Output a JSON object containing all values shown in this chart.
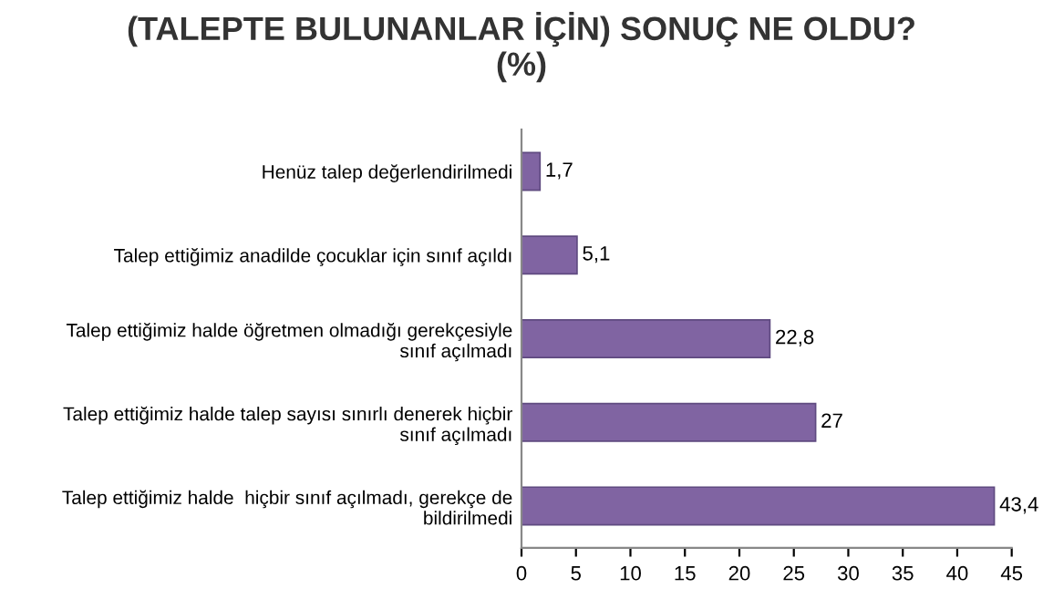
{
  "chart_data": {
    "type": "bar",
    "orientation": "horizontal",
    "title": "(TALEPTE BULUNANLAR İÇİN) SONUÇ NE OLDU?\n(%)",
    "categories": [
      "Henüz talep değerlendirilmedi",
      "Talep ettiğimiz anadilde çocuklar için sınıf açıldı",
      "Talep ettiğimiz halde öğretmen olmadığı gerekçesiyle\nsınıf açılmadı",
      "Talep ettiğimiz halde talep sayısı sınırlı denerek hiçbir\nsınıf açılmadı",
      "Talep ettiğimiz halde  hiçbir sınıf açılmadı, gerekçe de\nbildirilmedi"
    ],
    "values": [
      1.7,
      5.1,
      22.8,
      27,
      43.4
    ],
    "value_labels": [
      "1,7",
      "5,1",
      "22,8",
      "27",
      "43,4"
    ],
    "color": "#8064a2",
    "xlim": [
      0,
      45
    ],
    "xticks": [
      0,
      5,
      10,
      15,
      20,
      25,
      30,
      35,
      40,
      45
    ]
  }
}
